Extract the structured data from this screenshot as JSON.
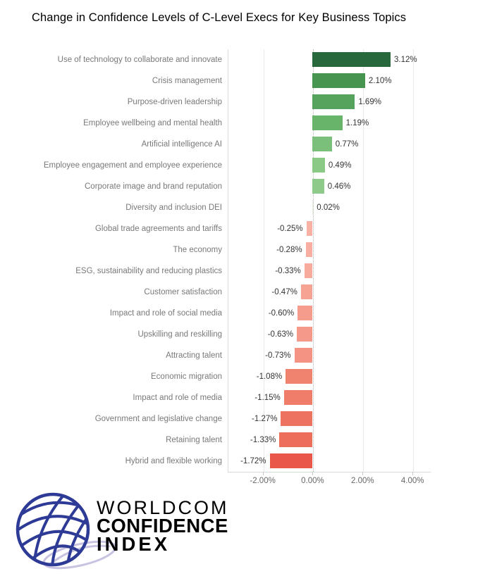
{
  "title": "Change in Confidence Levels of C-Level Execs for Key Business Topics",
  "chart_data": {
    "type": "bar",
    "orientation": "horizontal",
    "title": "Change in Confidence Levels of C-Level Execs for Key Business Topics",
    "xlabel": "",
    "ylabel": "",
    "xlim": [
      -3.4,
      4.7
    ],
    "grid": true,
    "categories": [
      "Use of technology to collaborate and innovate",
      "Crisis management",
      "Purpose-driven leadership",
      "Employee wellbeing and mental health",
      "Artificial intelligence AI",
      "Employee engagement and employee experience",
      "Corporate image and brand reputation",
      "Diversity and inclusion DEI",
      "Global trade agreements and tariffs",
      "The economy",
      "ESG, sustainability and reducing plastics",
      "Customer satisfaction",
      "Impact and role of social media",
      "Upskilling and reskilling",
      "Attracting talent",
      "Economic migration",
      "Impact and role of media",
      "Government and legislative change",
      "Retaining talent",
      "Hybrid and flexible working"
    ],
    "values": [
      3.12,
      2.1,
      1.69,
      1.19,
      0.77,
      0.49,
      0.46,
      0.02,
      -0.25,
      -0.28,
      -0.33,
      -0.47,
      -0.6,
      -0.63,
      -0.73,
      -1.08,
      -1.15,
      -1.27,
      -1.33,
      -1.72
    ],
    "value_labels": [
      "3.12%",
      "2.10%",
      "1.69%",
      "1.19%",
      "0.77%",
      "0.49%",
      "0.46%",
      "0.02%",
      "-0.25%",
      "-0.28%",
      "-0.33%",
      "-0.47%",
      "-0.60%",
      "-0.63%",
      "-0.73%",
      "-1.08%",
      "-1.15%",
      "-1.27%",
      "-1.33%",
      "-1.72%"
    ],
    "bar_colors": [
      "#27693c",
      "#479350",
      "#55a35c",
      "#68b46a",
      "#7bc07a",
      "#8aca86",
      "#8ecb8a",
      "#e3eedd",
      "#f8b1a4",
      "#f8afa2",
      "#f7ab9d",
      "#f6a394",
      "#f59c8c",
      "#f59a8a",
      "#f49383",
      "#f08270",
      "#ef7d6a",
      "#ed7260",
      "#ec6e5b",
      "#e9564a"
    ],
    "x_ticks": [
      {
        "value": -2,
        "label": "-2.00%"
      },
      {
        "value": 0,
        "label": "0.00%"
      },
      {
        "value": 2,
        "label": "2.00%"
      },
      {
        "value": 4,
        "label": "4.00%"
      }
    ],
    "legend": null
  },
  "colors": {
    "positive_max": "#27693c",
    "negative_max": "#e9564a",
    "label_text": "#797979",
    "value_text": "#333333",
    "axis_text": "#666666",
    "logo_navy": "#22339b"
  },
  "logo": {
    "icon": "globe-icon",
    "line1": "WORLDCOM",
    "line2": "CONFIDENCE",
    "line3": "INDEX",
    "color": "#22339b"
  }
}
